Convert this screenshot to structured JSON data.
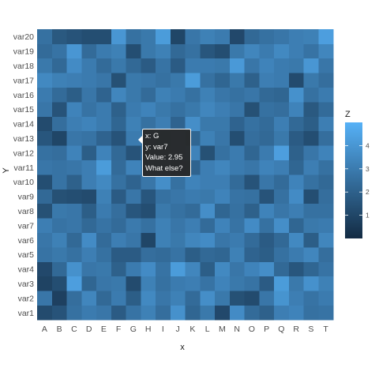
{
  "chart_data": {
    "type": "heatmap",
    "xlabel": "x",
    "ylabel": "Y",
    "x_categories": [
      "A",
      "B",
      "C",
      "D",
      "E",
      "F",
      "G",
      "H",
      "I",
      "J",
      "K",
      "L",
      "M",
      "N",
      "O",
      "P",
      "Q",
      "R",
      "S",
      "T"
    ],
    "y_categories": [
      "var1",
      "var2",
      "var3",
      "var4",
      "var5",
      "var6",
      "var7",
      "var8",
      "var9",
      "var10",
      "var11",
      "var12",
      "var13",
      "var14",
      "var15",
      "var16",
      "var17",
      "var18",
      "var19",
      "var20"
    ],
    "values": [
      [
        1.2,
        1.5,
        2.6,
        3.0,
        2.8,
        1.8,
        2.7,
        3.2,
        2.5,
        3.8,
        2.2,
        2.9,
        1.1,
        3.6,
        2.4,
        2.0,
        3.1,
        3.3,
        2.6,
        2.7
      ],
      [
        2.8,
        0.8,
        2.5,
        3.4,
        2.3,
        3.0,
        1.9,
        3.5,
        2.8,
        3.2,
        2.4,
        3.7,
        2.9,
        1.4,
        1.2,
        2.8,
        3.9,
        3.1,
        2.7,
        3.0
      ],
      [
        0.9,
        1.3,
        4.3,
        2.2,
        2.8,
        2.9,
        1.2,
        3.2,
        2.6,
        3.0,
        3.1,
        2.7,
        3.3,
        2.9,
        2.7,
        1.8,
        4.2,
        2.9,
        3.8,
        3.2
      ],
      [
        1.1,
        2.3,
        3.8,
        2.8,
        2.9,
        2.0,
        3.0,
        3.6,
        2.7,
        4.2,
        3.4,
        1.9,
        3.5,
        2.8,
        3.3,
        3.7,
        2.3,
        1.6,
        2.2,
        2.7
      ],
      [
        2.7,
        2.9,
        2.6,
        3.1,
        2.6,
        1.8,
        1.8,
        2.5,
        2.4,
        2.7,
        1.9,
        2.3,
        2.2,
        3.2,
        2.1,
        1.9,
        2.6,
        3.0,
        3.4,
        2.5
      ],
      [
        2.8,
        3.2,
        2.3,
        3.6,
        2.4,
        3.1,
        2.8,
        1.0,
        3.2,
        2.9,
        3.4,
        3.6,
        2.8,
        3.0,
        2.4,
        1.8,
        2.3,
        3.5,
        1.9,
        3.4
      ],
      [
        3.1,
        2.7,
        2.8,
        2.3,
        2.7,
        2.4,
        2.95,
        2.6,
        3.2,
        2.8,
        3.1,
        2.4,
        3.3,
        2.7,
        3.6,
        2.6,
        3.7,
        2.2,
        2.9,
        3.0
      ],
      [
        1.4,
        2.9,
        2.8,
        1.9,
        3.0,
        2.5,
        1.6,
        1.3,
        2.9,
        2.6,
        2.4,
        3.7,
        2.2,
        2.6,
        2.0,
        3.3,
        2.8,
        3.1,
        2.6,
        2.6
      ],
      [
        2.3,
        1.4,
        1.3,
        1.2,
        3.2,
        1.8,
        2.8,
        1.6,
        2.6,
        2.8,
        3.0,
        2.9,
        3.3,
        2.7,
        2.6,
        1.5,
        2.6,
        3.6,
        1.3,
        2.5
      ],
      [
        1.3,
        2.7,
        2.0,
        3.1,
        3.5,
        2.6,
        2.1,
        2.8,
        3.7,
        2.6,
        3.3,
        3.1,
        3.1,
        2.4,
        1.5,
        2.8,
        2.4,
        3.3,
        2.6,
        2.3
      ],
      [
        2.8,
        2.7,
        2.8,
        3.1,
        4.2,
        2.4,
        3.3,
        2.9,
        2.8,
        1.7,
        2.1,
        3.1,
        3.4,
        3.0,
        2.8,
        3.3,
        3.1,
        2.2,
        3.1,
        2.6
      ],
      [
        2.6,
        2.5,
        3.3,
        1.9,
        3.3,
        2.3,
        1.5,
        2.7,
        2.7,
        3.0,
        3.3,
        1.4,
        2.6,
        3.0,
        2.2,
        3.0,
        4.3,
        2.0,
        2.8,
        3.3
      ],
      [
        1.6,
        1.0,
        2.8,
        2.7,
        2.1,
        1.5,
        3.0,
        2.9,
        2.6,
        2.9,
        2.2,
        3.2,
        2.8,
        1.3,
        2.5,
        2.3,
        2.9,
        1.8,
        1.3,
        2.5
      ],
      [
        1.2,
        2.5,
        3.1,
        3.3,
        3.0,
        2.2,
        3.2,
        2.6,
        3.1,
        2.1,
        3.7,
        2.9,
        2.9,
        2.1,
        2.6,
        2.4,
        3.1,
        2.3,
        1.9,
        3.1
      ],
      [
        2.8,
        1.5,
        3.3,
        2.7,
        3.0,
        2.0,
        3.0,
        3.3,
        2.9,
        2.6,
        2.9,
        3.4,
        3.1,
        2.8,
        1.4,
        2.6,
        2.5,
        3.3,
        1.7,
        2.4
      ],
      [
        3.0,
        2.4,
        1.9,
        2.8,
        2.1,
        3.4,
        2.9,
        2.4,
        3.2,
        3.0,
        2.6,
        3.2,
        2.8,
        2.6,
        2.8,
        2.3,
        2.2,
        3.8,
        2.6,
        3.0
      ],
      [
        3.5,
        3.2,
        3.1,
        3.0,
        2.8,
        1.4,
        2.9,
        2.8,
        2.6,
        2.9,
        4.2,
        2.6,
        2.2,
        2.9,
        2.0,
        3.1,
        3.0,
        1.2,
        2.9,
        2.5
      ],
      [
        2.9,
        2.3,
        3.6,
        3.0,
        2.4,
        2.9,
        2.3,
        1.8,
        2.7,
        1.8,
        3.0,
        3.0,
        2.9,
        4.1,
        2.8,
        3.3,
        3.0,
        2.9,
        4.0,
        2.8
      ],
      [
        2.4,
        2.7,
        4.0,
        2.4,
        3.0,
        3.2,
        1.3,
        2.9,
        3.2,
        2.3,
        2.6,
        1.6,
        1.3,
        2.9,
        3.4,
        3.0,
        3.5,
        3.1,
        2.7,
        3.4
      ],
      [
        2.6,
        1.7,
        1.5,
        1.3,
        1.3,
        4.0,
        2.6,
        2.9,
        4.2,
        1.0,
        2.8,
        3.2,
        3.0,
        1.1,
        2.3,
        2.6,
        2.8,
        3.1,
        3.2,
        4.3
      ]
    ],
    "zlim": [
      0,
      5
    ],
    "legend": {
      "title": "Z",
      "ticks": [
        1,
        2,
        3,
        4
      ],
      "colors": [
        "#132B43",
        "#56B1F7"
      ],
      "position": "right"
    },
    "grid": false
  },
  "tooltip": {
    "x_line": "x: G",
    "y_line": "y: var7",
    "value_line": "Value: 2.95",
    "extra_line": "What else?"
  }
}
